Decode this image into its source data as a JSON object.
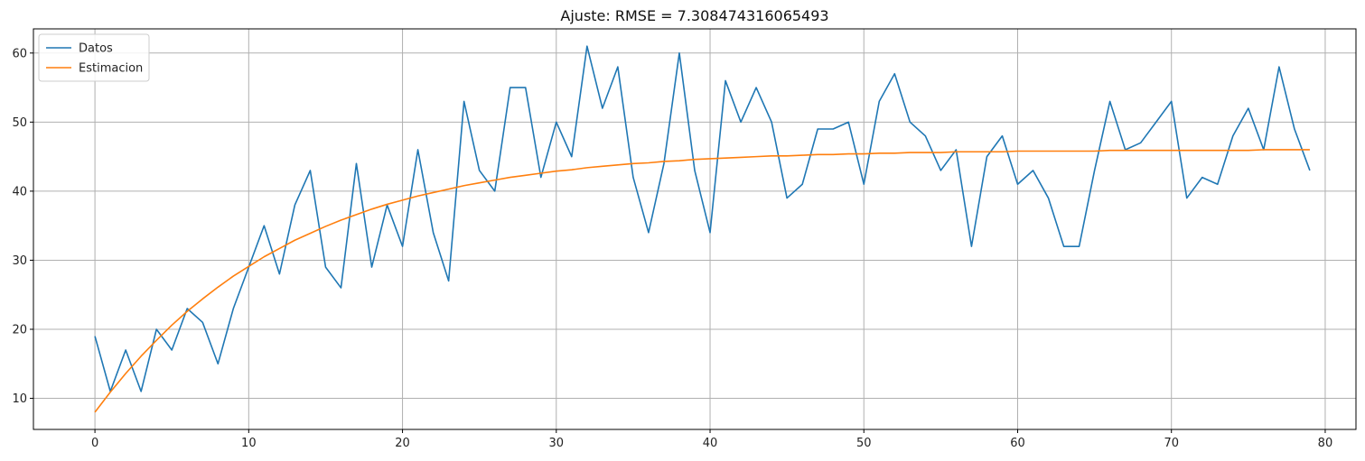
{
  "chart_data": {
    "type": "line",
    "title": "Ajuste: RMSE = 7.308474316065493",
    "xlabel": "",
    "ylabel": "",
    "xlim": [
      -4,
      82
    ],
    "ylim": [
      5.5,
      63.5
    ],
    "xticks": [
      0,
      10,
      20,
      30,
      40,
      50,
      60,
      70,
      80
    ],
    "yticks": [
      10,
      20,
      30,
      40,
      50,
      60
    ],
    "grid": true,
    "legend_position": "upper-left",
    "x": [
      0,
      1,
      2,
      3,
      4,
      5,
      6,
      7,
      8,
      9,
      10,
      11,
      12,
      13,
      14,
      15,
      16,
      17,
      18,
      19,
      20,
      21,
      22,
      23,
      24,
      25,
      26,
      27,
      28,
      29,
      30,
      31,
      32,
      33,
      34,
      35,
      36,
      37,
      38,
      39,
      40,
      41,
      42,
      43,
      44,
      45,
      46,
      47,
      48,
      49,
      50,
      51,
      52,
      53,
      54,
      55,
      56,
      57,
      58,
      59,
      60,
      61,
      62,
      63,
      64,
      65,
      66,
      67,
      68,
      69,
      70,
      71,
      72,
      73,
      74,
      75,
      76,
      77,
      78,
      79
    ],
    "series": [
      {
        "name": "Datos",
        "color": "#1f77b4",
        "values": [
          19,
          11,
          17,
          11,
          20,
          17,
          23,
          21,
          15,
          23,
          29,
          35,
          28,
          38,
          43,
          29,
          26,
          44,
          29,
          38,
          32,
          46,
          34,
          27,
          53,
          43,
          40,
          55,
          55,
          42,
          50,
          45,
          61,
          52,
          58,
          42,
          34,
          44,
          60,
          43,
          34,
          56,
          50,
          55,
          50,
          39,
          41,
          49,
          49,
          50,
          41,
          53,
          57,
          50,
          48,
          43,
          46,
          32,
          45,
          48,
          41,
          43,
          39,
          32,
          32,
          43,
          53,
          46,
          47,
          50,
          53,
          39,
          42,
          41,
          48,
          52,
          46,
          58,
          49,
          43
        ]
      },
      {
        "name": "Estimacion",
        "color": "#ff7f0e",
        "values": [
          8.0,
          10.9,
          13.6,
          16.1,
          18.4,
          20.6,
          22.6,
          24.4,
          26.1,
          27.7,
          29.1,
          30.5,
          31.7,
          32.9,
          33.9,
          34.9,
          35.8,
          36.6,
          37.4,
          38.1,
          38.7,
          39.3,
          39.8,
          40.3,
          40.8,
          41.2,
          41.6,
          42.0,
          42.3,
          42.6,
          42.9,
          43.1,
          43.4,
          43.6,
          43.8,
          44.0,
          44.1,
          44.3,
          44.4,
          44.6,
          44.7,
          44.8,
          44.9,
          45.0,
          45.1,
          45.1,
          45.2,
          45.3,
          45.3,
          45.4,
          45.4,
          45.5,
          45.5,
          45.6,
          45.6,
          45.6,
          45.7,
          45.7,
          45.7,
          45.7,
          45.8,
          45.8,
          45.8,
          45.8,
          45.8,
          45.8,
          45.9,
          45.9,
          45.9,
          45.9,
          45.9,
          45.9,
          45.9,
          45.9,
          45.9,
          45.9,
          46.0,
          46.0,
          46.0,
          46.0
        ]
      }
    ]
  }
}
